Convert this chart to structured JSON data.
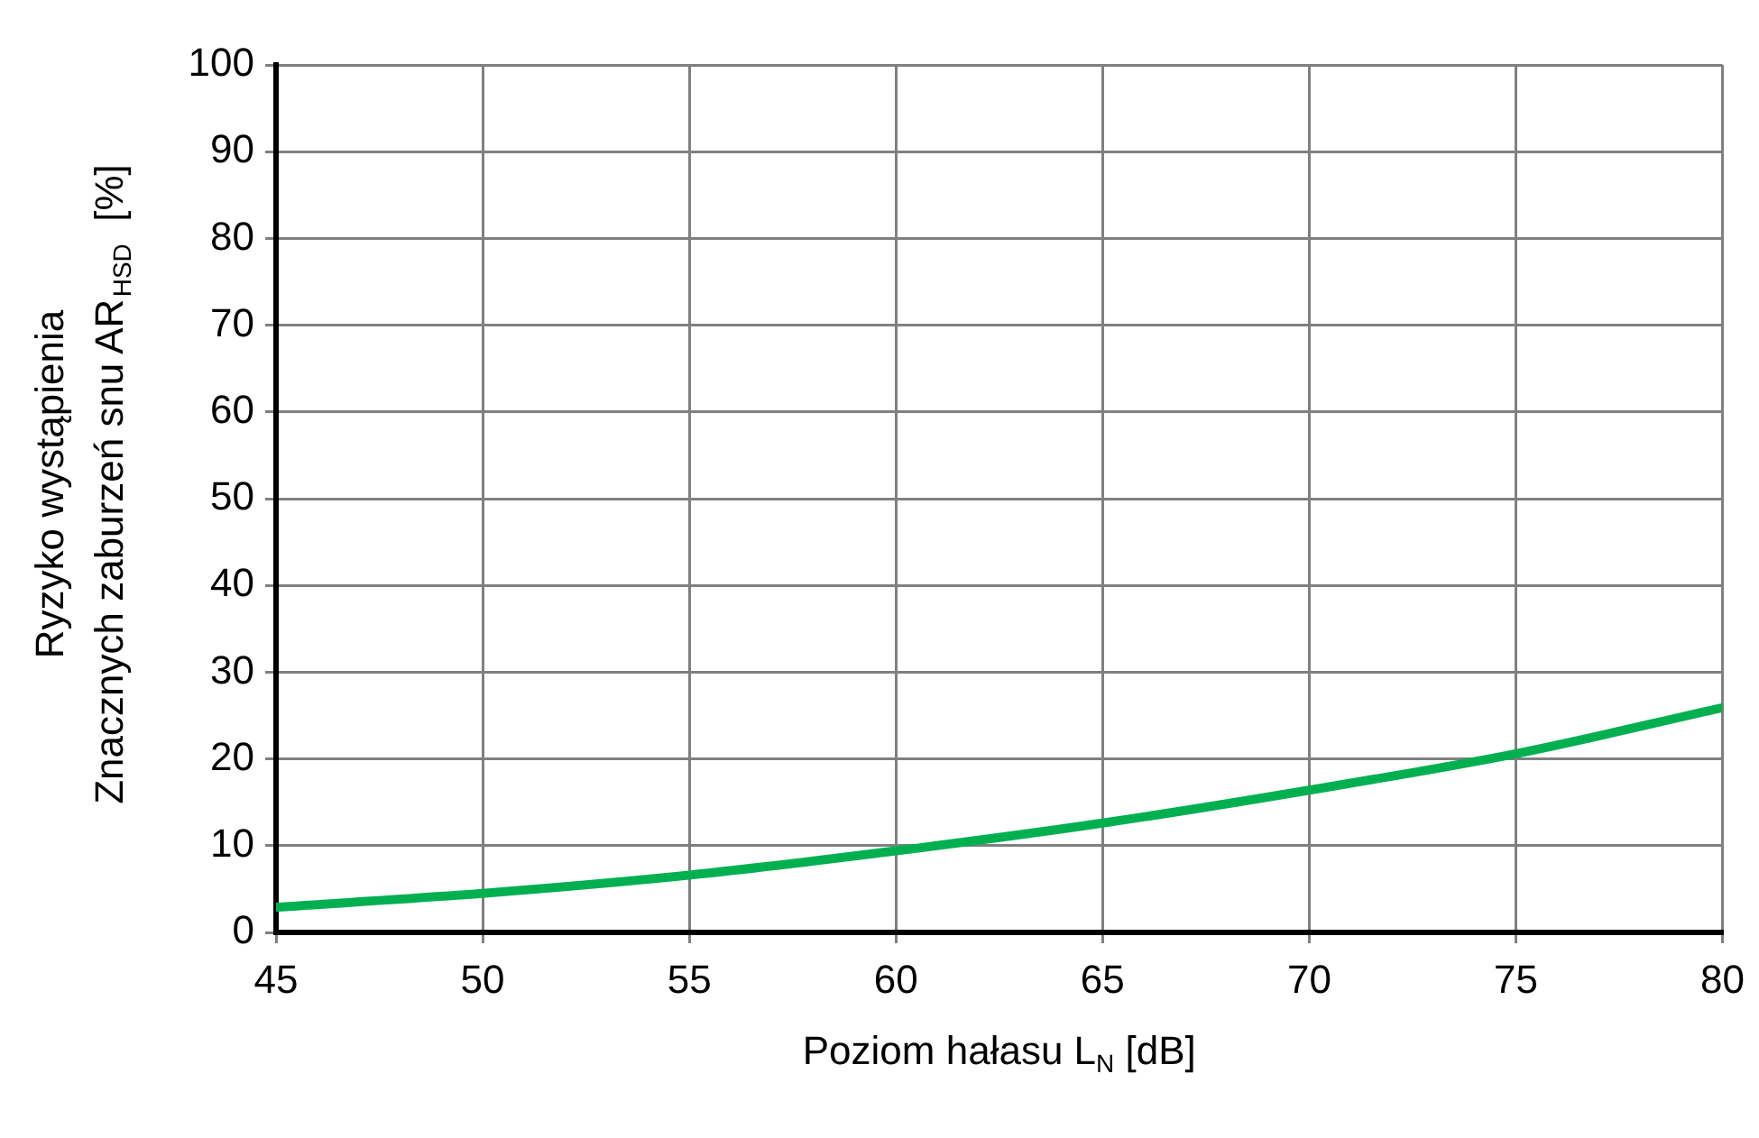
{
  "chart_data": {
    "type": "line",
    "xlabel": "Poziom hałasu L$_{N}$ [dB]",
    "ylabel": "Ryzyko wystąpienia\nZnacznych zaburzeń snu AR$_{HSD}$  [%]",
    "x": [
      45,
      50,
      55,
      60,
      65,
      70,
      75,
      80
    ],
    "series": [
      {
        "color": "#00b050",
        "values": [
          2.9,
          4.5,
          6.6,
          9.4,
          12.6,
          16.4,
          20.6,
          25.9
        ]
      }
    ],
    "xlim": [
      45,
      80
    ],
    "xticks": [
      45,
      50,
      55,
      60,
      65,
      70,
      75,
      80
    ],
    "ylim": [
      0,
      100
    ],
    "yticks": [
      0,
      10,
      20,
      30,
      40,
      50,
      60,
      70,
      80,
      90,
      100
    ],
    "grid": true,
    "legend": false,
    "marker": "none",
    "line_style": "solid"
  }
}
